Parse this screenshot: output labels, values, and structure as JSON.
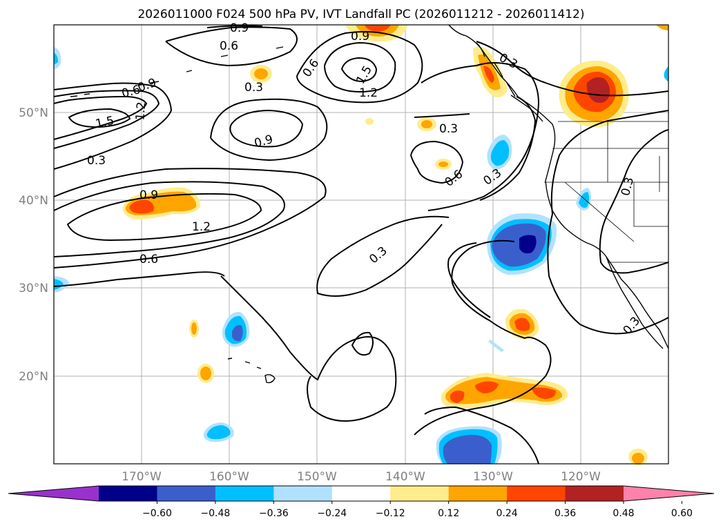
{
  "title": "2026011000 F024 500 hPa PV, IVT Landfall PC (2026011212 - 2026011412)",
  "map": {
    "lon_range": [
      -180,
      -110
    ],
    "lat_range": [
      10,
      60
    ],
    "lat_labels": [
      "50°N",
      "40°N",
      "30°N",
      "20°N"
    ],
    "lon_labels": [
      "170°W",
      "160°W",
      "150°W",
      "140°W",
      "130°W",
      "120°W"
    ],
    "contour_labels": [
      "0.9",
      "0.9",
      "0.6",
      "0.6",
      "0.6",
      "0.3",
      "0.3",
      "0.3",
      "0.9",
      "1.5",
      "1.2",
      "1.2",
      "1.5",
      "0.3",
      "0.9",
      "0.3",
      "0.3",
      "0.6",
      "0.9",
      "1.2",
      "0.6",
      "0.3",
      "0.3",
      "0.3"
    ]
  },
  "colorbar": {
    "ticks": [
      "−0.60",
      "−0.48",
      "−0.36",
      "−0.24",
      "−0.12",
      "0.12",
      "0.24",
      "0.36",
      "0.48",
      "0.60"
    ],
    "colors": [
      "#9932cc",
      "#00008b",
      "#3a5fcd",
      "#00bfff",
      "#b0e2ff",
      "#ffffff",
      "#ffec8b",
      "#ffa500",
      "#ff4500",
      "#b22222",
      "#ff82ab"
    ]
  },
  "colors": {
    "dark_red": "#b22222",
    "red": "#ff4500",
    "orange": "#ffa500",
    "yellow": "#ffec8b",
    "light_blue": "#b0e2ff",
    "sky_blue": "#00bfff",
    "blue": "#3a5fcd",
    "navy": "#00008b"
  }
}
